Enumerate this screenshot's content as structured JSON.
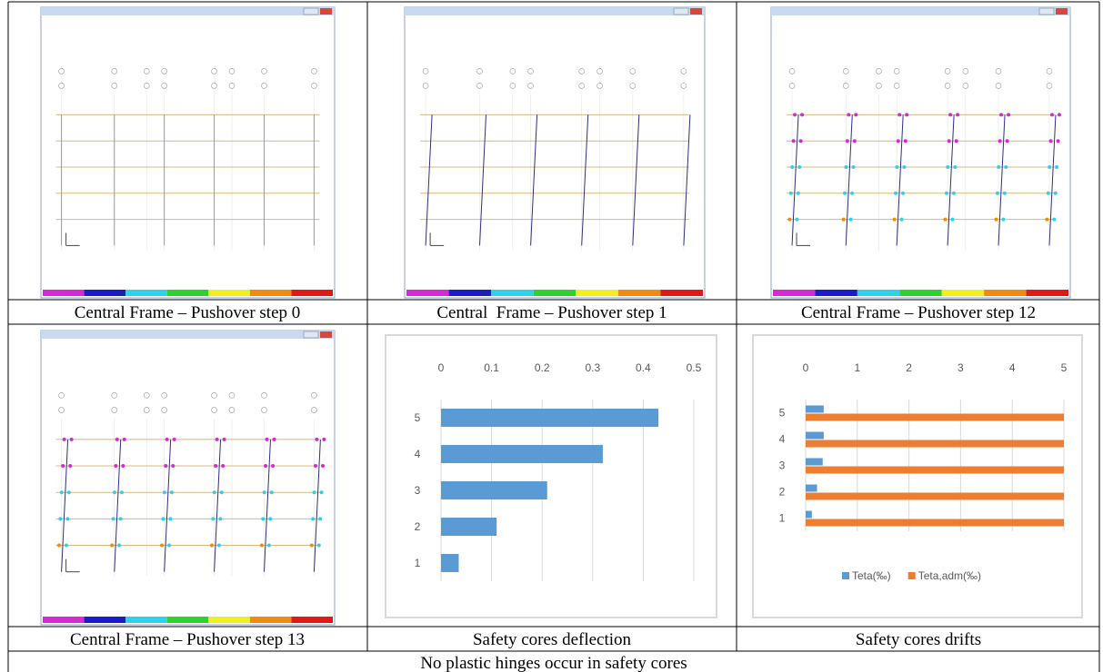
{
  "table": {
    "rows": [
      [
        "Central Frame – Pushover step 0",
        "Central  Frame – Pushover step 1",
        "Central Frame – Pushover step 12"
      ],
      [
        "Central Frame – Pushover step 13",
        "Safety cores deflection",
        "Safety cores drifts"
      ],
      [
        "No plastic hinges occur in safety cores"
      ]
    ]
  },
  "chart_data": [
    {
      "type": "bar",
      "horizontal": true,
      "categories": [
        "1",
        "2",
        "3",
        "4",
        "5"
      ],
      "values": [
        0.035,
        0.11,
        0.21,
        0.32,
        0.43
      ],
      "color": "#5b9bd5",
      "xlim": [
        0,
        0.5
      ],
      "xticks": [
        0,
        0.1,
        0.2,
        0.3,
        0.4,
        0.5
      ],
      "grid": true
    },
    {
      "type": "bar",
      "horizontal": true,
      "categories": [
        "1",
        "2",
        "3",
        "4",
        "5"
      ],
      "series": [
        {
          "name": "Teta(‰)",
          "color": "#5b9bd5",
          "values": [
            0.12,
            0.22,
            0.33,
            0.35,
            0.35
          ]
        },
        {
          "name": "Teta,adm(‰)",
          "color": "#ed7d31",
          "values": [
            5,
            5,
            5,
            5,
            5
          ]
        }
      ],
      "xlim": [
        0,
        5
      ],
      "xticks": [
        0,
        1,
        2,
        3,
        4,
        5
      ],
      "grid": true,
      "legend": "bottom"
    }
  ]
}
